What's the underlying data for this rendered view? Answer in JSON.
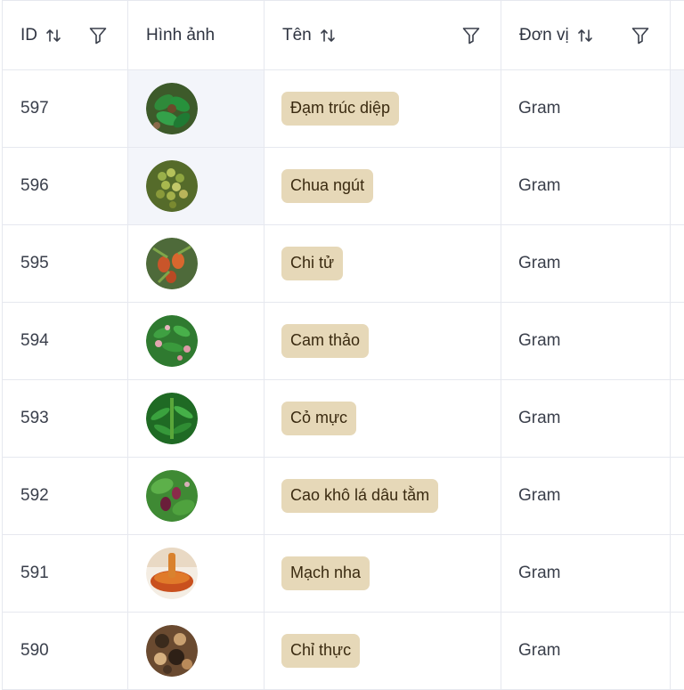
{
  "header": {
    "id": "ID",
    "image": "Hình ảnh",
    "name": "Tên",
    "unit": "Đơn vị"
  },
  "rows": [
    {
      "id": "597",
      "name": "Đạm trúc diệp",
      "unit": "Gram",
      "image_icon": "herb-leaves-image"
    },
    {
      "id": "596",
      "name": "Chua ngút",
      "unit": "Gram",
      "image_icon": "berry-cluster-image"
    },
    {
      "id": "595",
      "name": "Chi tử",
      "unit": "Gram",
      "image_icon": "orange-fruit-image"
    },
    {
      "id": "594",
      "name": "Cam thảo",
      "unit": "Gram",
      "image_icon": "flowering-plant-image"
    },
    {
      "id": "593",
      "name": "Cỏ mực",
      "unit": "Gram",
      "image_icon": "green-herb-image"
    },
    {
      "id": "592",
      "name": "Cao khô lá dâu tằm",
      "unit": "Gram",
      "image_icon": "mulberry-image"
    },
    {
      "id": "591",
      "name": "Mạch nha",
      "unit": "Gram",
      "image_icon": "syrup-bowl-image"
    },
    {
      "id": "590",
      "name": "Chỉ thực",
      "unit": "Gram",
      "image_icon": "dried-fruit-image"
    }
  ],
  "colors": {
    "tag_background": "#e6d8b8",
    "tag_text": "#3a2a10",
    "border": "#e6e8ef",
    "highlight": "#f3f5fa"
  }
}
